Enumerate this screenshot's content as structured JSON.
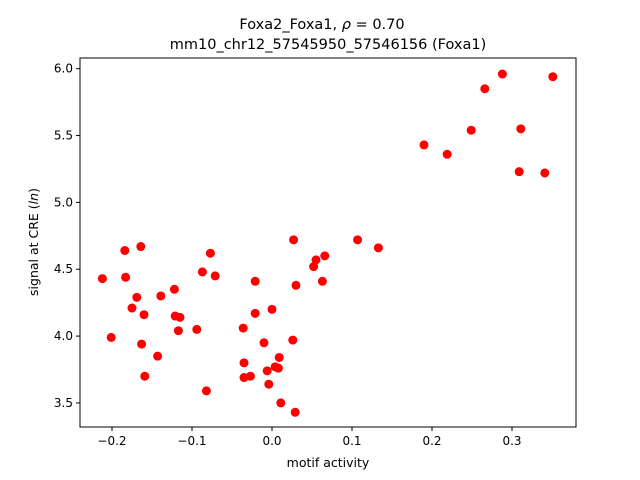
{
  "chart_data": {
    "type": "scatter",
    "title_line1_prefix": "Foxa2_Foxa1, ",
    "title_line1_rho": "ρ",
    "title_line1_suffix": " = 0.70",
    "title_line2": "mm10_chr12_57545950_57546156 (Foxa1)",
    "xlabel": "motif activity",
    "ylabel_prefix": "signal at CRE (",
    "ylabel_italic": "ln",
    "ylabel_suffix": ")",
    "xlim": [
      -0.24,
      0.38
    ],
    "ylim": [
      3.32,
      6.08
    ],
    "xticks": [
      -0.2,
      -0.1,
      0.0,
      0.1,
      0.2,
      0.3
    ],
    "xtick_labels": [
      "−0.2",
      "−0.1",
      "0.0",
      "0.1",
      "0.2",
      "0.3"
    ],
    "yticks": [
      3.5,
      4.0,
      4.5,
      5.0,
      5.5,
      6.0
    ],
    "ytick_labels": [
      "3.5",
      "4.0",
      "4.5",
      "5.0",
      "5.5",
      "6.0"
    ],
    "grid": false,
    "marker_color": "#ff0000",
    "points": [
      {
        "x": -0.212,
        "y": 4.43
      },
      {
        "x": -0.201,
        "y": 3.99
      },
      {
        "x": -0.184,
        "y": 4.64
      },
      {
        "x": -0.183,
        "y": 4.44
      },
      {
        "x": -0.175,
        "y": 4.21
      },
      {
        "x": -0.169,
        "y": 4.29
      },
      {
        "x": -0.164,
        "y": 4.67
      },
      {
        "x": -0.163,
        "y": 3.94
      },
      {
        "x": -0.16,
        "y": 4.16
      },
      {
        "x": -0.159,
        "y": 3.7
      },
      {
        "x": -0.143,
        "y": 3.85
      },
      {
        "x": -0.139,
        "y": 4.3
      },
      {
        "x": -0.122,
        "y": 4.35
      },
      {
        "x": -0.121,
        "y": 4.15
      },
      {
        "x": -0.117,
        "y": 4.04
      },
      {
        "x": -0.115,
        "y": 4.14
      },
      {
        "x": -0.094,
        "y": 4.05
      },
      {
        "x": -0.087,
        "y": 4.48
      },
      {
        "x": -0.082,
        "y": 3.59
      },
      {
        "x": -0.077,
        "y": 4.62
      },
      {
        "x": -0.071,
        "y": 4.45
      },
      {
        "x": -0.036,
        "y": 4.06
      },
      {
        "x": -0.035,
        "y": 3.8
      },
      {
        "x": -0.035,
        "y": 3.69
      },
      {
        "x": -0.027,
        "y": 3.7
      },
      {
        "x": -0.021,
        "y": 4.41
      },
      {
        "x": -0.021,
        "y": 4.17
      },
      {
        "x": -0.01,
        "y": 3.95
      },
      {
        "x": -0.006,
        "y": 3.74
      },
      {
        "x": -0.004,
        "y": 3.64
      },
      {
        "x": 0.0,
        "y": 4.2
      },
      {
        "x": 0.004,
        "y": 3.77
      },
      {
        "x": 0.008,
        "y": 3.76
      },
      {
        "x": 0.009,
        "y": 3.84
      },
      {
        "x": 0.011,
        "y": 3.5
      },
      {
        "x": 0.026,
        "y": 3.97
      },
      {
        "x": 0.027,
        "y": 4.72
      },
      {
        "x": 0.029,
        "y": 3.43
      },
      {
        "x": 0.03,
        "y": 4.38
      },
      {
        "x": 0.052,
        "y": 4.52
      },
      {
        "x": 0.055,
        "y": 4.57
      },
      {
        "x": 0.063,
        "y": 4.41
      },
      {
        "x": 0.066,
        "y": 4.6
      },
      {
        "x": 0.107,
        "y": 4.72
      },
      {
        "x": 0.133,
        "y": 4.66
      },
      {
        "x": 0.19,
        "y": 5.43
      },
      {
        "x": 0.219,
        "y": 5.36
      },
      {
        "x": 0.249,
        "y": 5.54
      },
      {
        "x": 0.266,
        "y": 5.85
      },
      {
        "x": 0.288,
        "y": 5.96
      },
      {
        "x": 0.309,
        "y": 5.23
      },
      {
        "x": 0.311,
        "y": 5.55
      },
      {
        "x": 0.341,
        "y": 5.22
      },
      {
        "x": 0.351,
        "y": 5.94
      }
    ]
  }
}
